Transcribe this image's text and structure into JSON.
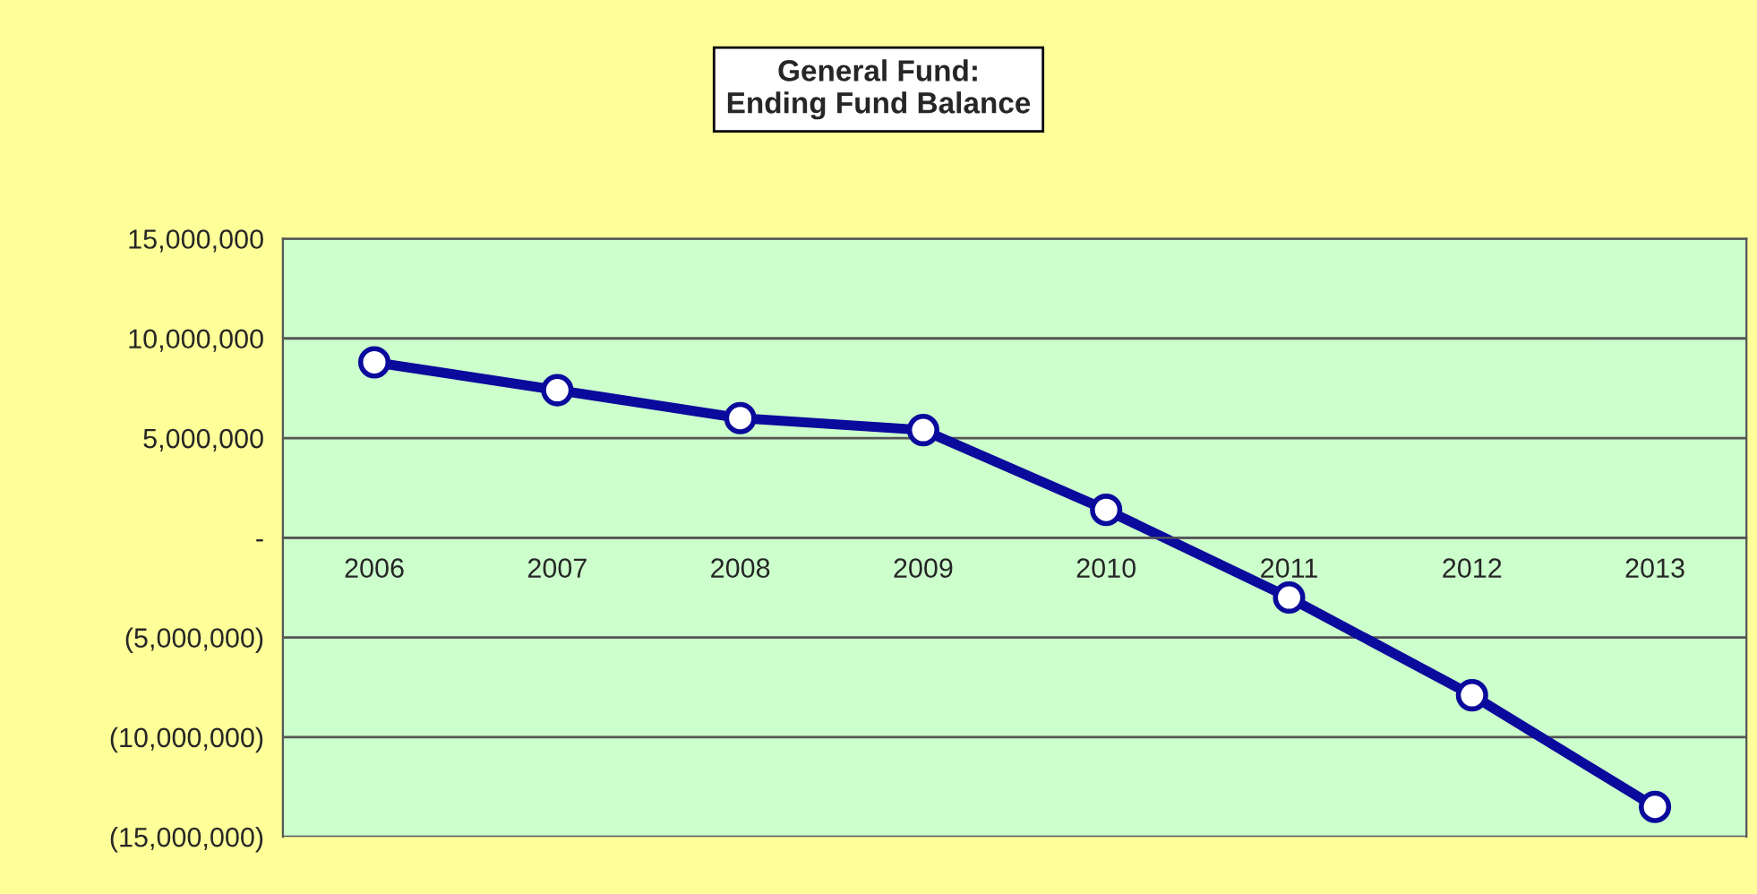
{
  "chart_data": {
    "type": "line",
    "title": "General Fund:\nEnding Fund Balance",
    "categories": [
      "2006",
      "2007",
      "2008",
      "2009",
      "2010",
      "2011",
      "2012",
      "2013"
    ],
    "series": [
      {
        "color": "#0a0a9c",
        "values": [
          8800000,
          7400000,
          6000000,
          5400000,
          1400000,
          -3000000,
          -7900000,
          -13500000
        ]
      }
    ],
    "ylim": [
      -15000000,
      15000000
    ],
    "yticks": [
      {
        "value": -15000000,
        "label": "(15,000,000)"
      },
      {
        "value": -10000000,
        "label": "(10,000,000)"
      },
      {
        "value": -5000000,
        "label": "(5,000,000)"
      },
      {
        "value": 0,
        "label": "-"
      },
      {
        "value": 5000000,
        "label": "5,000,000"
      },
      {
        "value": 10000000,
        "label": "10,000,000"
      },
      {
        "value": 15000000,
        "label": "15,000,000"
      }
    ],
    "grid": "y",
    "marker": "circle",
    "line_style": "solid",
    "legend": false
  }
}
